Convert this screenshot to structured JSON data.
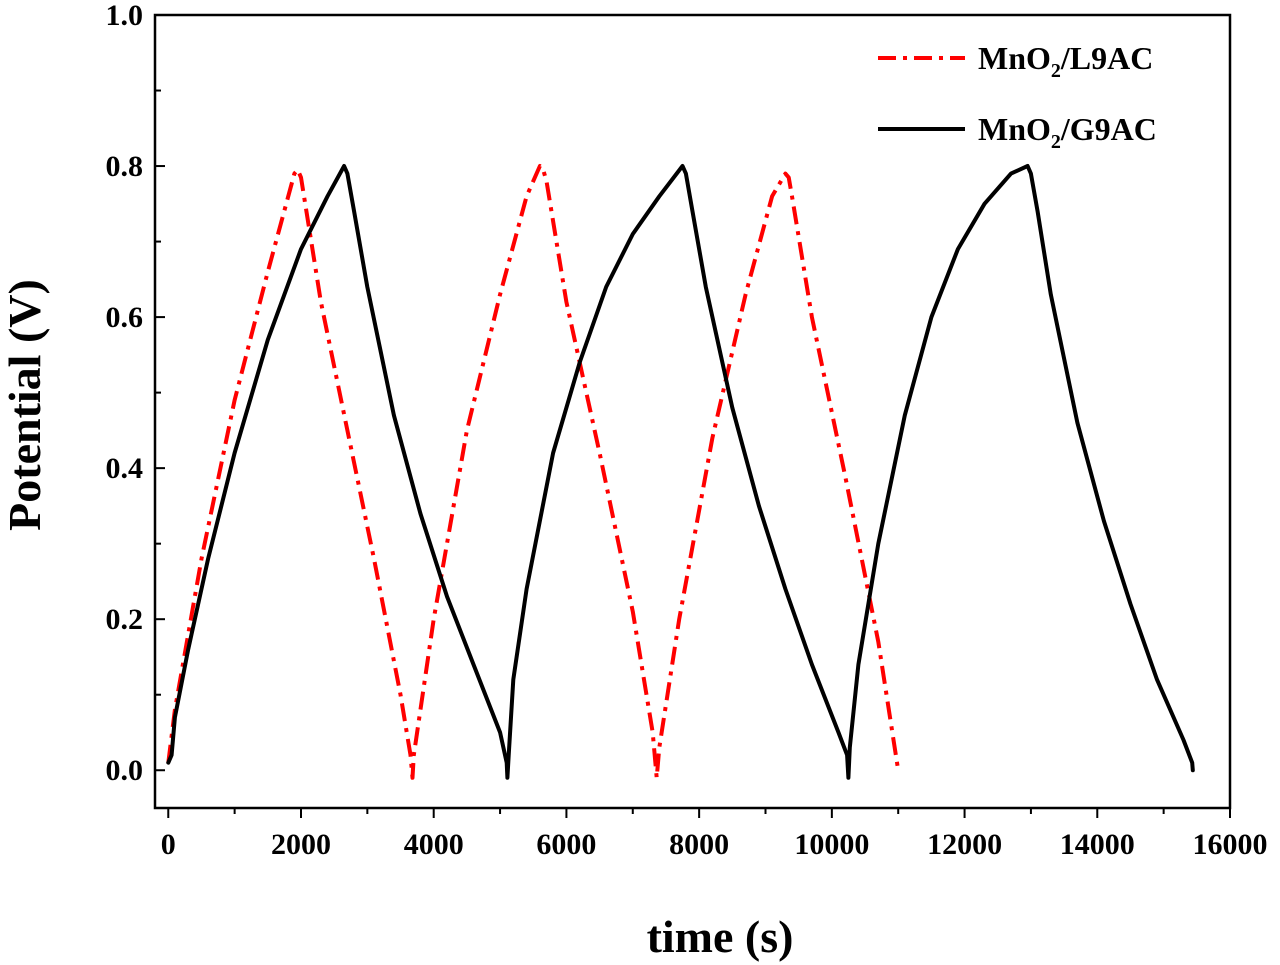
{
  "chart_data": {
    "type": "line",
    "title": "",
    "xlabel": "time (s)",
    "ylabel": "Potential (V)",
    "xlim": [
      -200,
      16000
    ],
    "ylim": [
      -0.05,
      1.0
    ],
    "xticks": [
      0,
      2000,
      4000,
      6000,
      8000,
      10000,
      12000,
      14000,
      16000
    ],
    "xtick_labels": [
      "0",
      "2000",
      "4000",
      "6000",
      "8000",
      "10000",
      "12000",
      "14000",
      "16000"
    ],
    "yticks": [
      0.0,
      0.2,
      0.4,
      0.6,
      0.8,
      1.0
    ],
    "ytick_labels": [
      "0.0",
      "0.2",
      "0.4",
      "0.6",
      "0.8",
      "1.0"
    ],
    "grid": false,
    "legend_position": "top-right",
    "series": [
      {
        "name": "MnO2/L9AC",
        "legend_main": "MnO",
        "legend_sub": "2",
        "legend_rest": "/L9AC",
        "color": "#ff0000",
        "style": "dash-dot",
        "points": [
          [
            0,
            0.01
          ],
          [
            100,
            0.08
          ],
          [
            500,
            0.28
          ],
          [
            1000,
            0.49
          ],
          [
            1500,
            0.66
          ],
          [
            1900,
            0.79
          ],
          [
            1950,
            0.795
          ],
          [
            2000,
            0.785
          ],
          [
            2300,
            0.62
          ],
          [
            2700,
            0.45
          ],
          [
            3100,
            0.28
          ],
          [
            3500,
            0.1
          ],
          [
            3650,
            0.02
          ],
          [
            3680,
            -0.01
          ],
          [
            3700,
            0.02
          ],
          [
            4000,
            0.2
          ],
          [
            4500,
            0.45
          ],
          [
            5000,
            0.63
          ],
          [
            5400,
            0.76
          ],
          [
            5600,
            0.8
          ],
          [
            5650,
            0.795
          ],
          [
            5700,
            0.78
          ],
          [
            6000,
            0.62
          ],
          [
            6500,
            0.42
          ],
          [
            7000,
            0.21
          ],
          [
            7300,
            0.05
          ],
          [
            7360,
            -0.01
          ],
          [
            7400,
            0.03
          ],
          [
            7700,
            0.2
          ],
          [
            8200,
            0.44
          ],
          [
            8700,
            0.63
          ],
          [
            9100,
            0.76
          ],
          [
            9300,
            0.79
          ],
          [
            9350,
            0.785
          ],
          [
            9400,
            0.76
          ],
          [
            9700,
            0.6
          ],
          [
            10200,
            0.39
          ],
          [
            10700,
            0.17
          ],
          [
            11000,
            0.0
          ]
        ]
      },
      {
        "name": "MnO2/G9AC",
        "legend_main": "MnO",
        "legend_sub": "2",
        "legend_rest": "/G9AC",
        "color": "#000000",
        "style": "solid",
        "points": [
          [
            0,
            0.01
          ],
          [
            50,
            0.02
          ],
          [
            100,
            0.07
          ],
          [
            300,
            0.16
          ],
          [
            600,
            0.28
          ],
          [
            1000,
            0.42
          ],
          [
            1500,
            0.57
          ],
          [
            2000,
            0.69
          ],
          [
            2400,
            0.76
          ],
          [
            2650,
            0.8
          ],
          [
            2700,
            0.79
          ],
          [
            2800,
            0.74
          ],
          [
            3000,
            0.64
          ],
          [
            3400,
            0.47
          ],
          [
            3800,
            0.34
          ],
          [
            4200,
            0.23
          ],
          [
            4600,
            0.14
          ],
          [
            5000,
            0.05
          ],
          [
            5100,
            0.01
          ],
          [
            5110,
            -0.01
          ],
          [
            5130,
            0.02
          ],
          [
            5200,
            0.12
          ],
          [
            5400,
            0.24
          ],
          [
            5800,
            0.42
          ],
          [
            6200,
            0.54
          ],
          [
            6600,
            0.64
          ],
          [
            7000,
            0.71
          ],
          [
            7400,
            0.76
          ],
          [
            7750,
            0.8
          ],
          [
            7800,
            0.79
          ],
          [
            7900,
            0.74
          ],
          [
            8100,
            0.64
          ],
          [
            8500,
            0.48
          ],
          [
            8900,
            0.35
          ],
          [
            9300,
            0.24
          ],
          [
            9700,
            0.14
          ],
          [
            10100,
            0.05
          ],
          [
            10230,
            0.02
          ],
          [
            10250,
            -0.01
          ],
          [
            10270,
            0.03
          ],
          [
            10400,
            0.14
          ],
          [
            10700,
            0.3
          ],
          [
            11100,
            0.47
          ],
          [
            11500,
            0.6
          ],
          [
            11900,
            0.69
          ],
          [
            12300,
            0.75
          ],
          [
            12700,
            0.79
          ],
          [
            12950,
            0.8
          ],
          [
            13000,
            0.79
          ],
          [
            13100,
            0.74
          ],
          [
            13300,
            0.63
          ],
          [
            13700,
            0.46
          ],
          [
            14100,
            0.33
          ],
          [
            14500,
            0.22
          ],
          [
            14900,
            0.12
          ],
          [
            15300,
            0.04
          ],
          [
            15430,
            0.01
          ],
          [
            15440,
            0.0
          ]
        ]
      }
    ]
  }
}
